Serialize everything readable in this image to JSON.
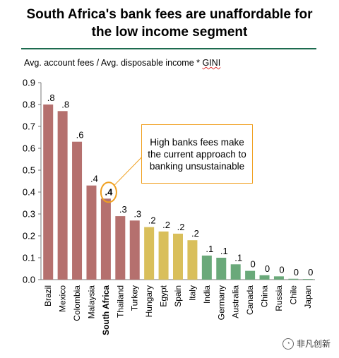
{
  "header": {
    "title_line1": "South Africa's bank fees are unaffordable for",
    "title_line2": "the low income segment",
    "subtitle_main": "Avg. account fees / Avg. disposable income * ",
    "subtitle_gini": "GINI"
  },
  "callout": {
    "text": "High banks fees make the current approach to banking unsustainable"
  },
  "watermark": {
    "text": "非凡创新"
  },
  "colors": {
    "high": "#b5706e",
    "mid": "#d9bf5b",
    "low": "#6aa97a",
    "callout_border": "#f0a020",
    "rule": "#1d6b4f"
  },
  "chart_data": {
    "type": "bar",
    "categories": [
      "Brazil",
      "Mexico",
      "Colombia",
      "Malaysia",
      "South Africa",
      "Thailand",
      "Turkey",
      "Hungary",
      "Egypt",
      "Spain",
      "Italy",
      "India",
      "Germany",
      "Australia",
      "Canada",
      "China",
      "Russia",
      "Chile",
      "Japan"
    ],
    "values": [
      0.8,
      0.77,
      0.63,
      0.43,
      0.37,
      0.29,
      0.27,
      0.24,
      0.22,
      0.21,
      0.18,
      0.11,
      0.1,
      0.07,
      0.04,
      0.02,
      0.015,
      0.004,
      0.003
    ],
    "data_labels": [
      ".8",
      ".8",
      ".6",
      ".4",
      ".4",
      ".3",
      ".3",
      ".2",
      ".2",
      ".2",
      ".2",
      ".1",
      ".1",
      ".1",
      "0",
      "0",
      "0",
      "0",
      "0"
    ],
    "bar_color_groups": [
      "high",
      "high",
      "high",
      "high",
      "high",
      "high",
      "high",
      "mid",
      "mid",
      "mid",
      "mid",
      "low",
      "low",
      "low",
      "low",
      "low",
      "low",
      "low",
      "low"
    ],
    "highlight": "South Africa",
    "ylim": [
      0,
      0.9
    ],
    "yticks": [
      "0.0",
      "0.1",
      "0.2",
      "0.3",
      "0.4",
      "0.5",
      "0.6",
      "0.7",
      "0.8",
      "0.9"
    ],
    "grid": false,
    "legend": "none"
  }
}
